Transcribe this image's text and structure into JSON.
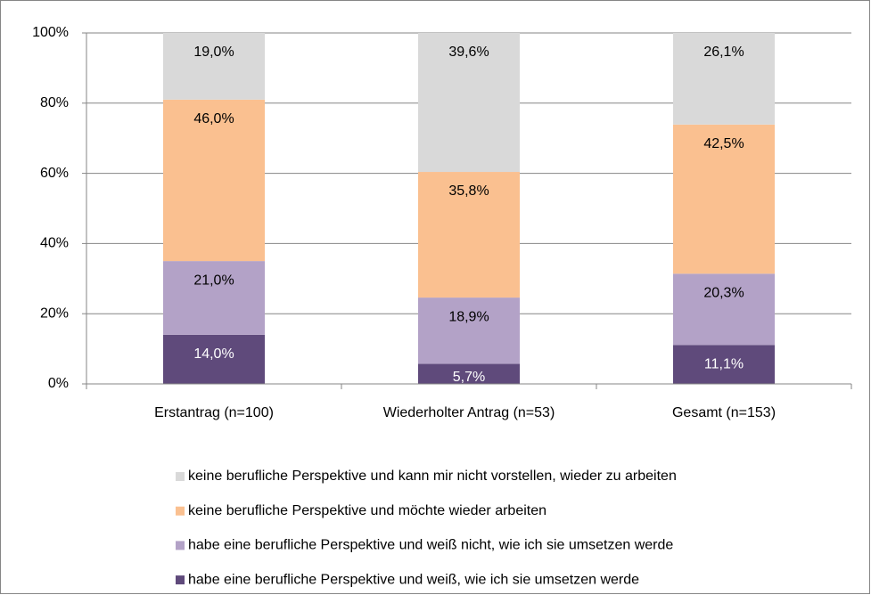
{
  "chart_data": {
    "type": "stacked_bar",
    "categories": [
      "Erstantrag (n=100)",
      "Wiederholter Antrag (n=53)",
      "Gesamt (n=153)"
    ],
    "series": [
      {
        "name": "habe eine berufliche Perspektive und weiß, wie ich sie umsetzen werde",
        "color": "#5f4a7b",
        "values": [
          14.0,
          5.7,
          11.1
        ],
        "value_labels": [
          "14,0%",
          "5,7%",
          "11,1%"
        ]
      },
      {
        "name": "habe eine berufliche Perspektive und weiß nicht, wie ich sie umsetzen werde",
        "color": "#b3a2c7",
        "values": [
          21.0,
          18.9,
          20.3
        ],
        "value_labels": [
          "21,0%",
          "18,9%",
          "20,3%"
        ]
      },
      {
        "name": "keine berufliche Perspektive und möchte wieder arbeiten",
        "color": "#fac090",
        "values": [
          46.0,
          35.8,
          42.5
        ],
        "value_labels": [
          "46,0%",
          "35,8%",
          "42,5%"
        ]
      },
      {
        "name": "keine berufliche Perspektive und kann mir nicht vorstellen, wieder zu arbeiten",
        "color": "#d9d9d9",
        "values": [
          19.0,
          39.6,
          26.1
        ],
        "value_labels": [
          "19,0%",
          "39,6%",
          "26,1%"
        ]
      }
    ],
    "ylim": [
      0,
      100
    ],
    "yticks": [
      {
        "value": 0,
        "label": "0%"
      },
      {
        "value": 20,
        "label": "20%"
      },
      {
        "value": 40,
        "label": "40%"
      },
      {
        "value": 60,
        "label": "60%"
      },
      {
        "value": 80,
        "label": "80%"
      },
      {
        "value": 100,
        "label": "100%"
      }
    ],
    "grid": true
  }
}
